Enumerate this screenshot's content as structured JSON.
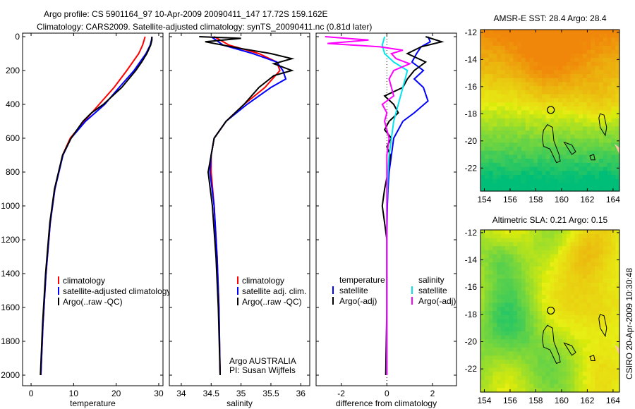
{
  "title": {
    "line1": "Argo profile: CS 5901164_97 10-Apr-2009 20090411_147 17.72S 159.162E",
    "line2": "Climatology: CARS2009. Satellite-adjusted climatology: synTS_20090411.nc (0.81d later)"
  },
  "side_label": "CSIRO 20-Apr-2009 10:30:48",
  "colors": {
    "red": "#ff0000",
    "blue": "#0000ff",
    "black": "#000000",
    "cyan": "#00e5ee",
    "magenta": "#ff00ff"
  },
  "chart_data": [
    {
      "type": "line",
      "id": "temperature",
      "xlabel": "temperature",
      "ylabel": "",
      "xlim": [
        -2,
        31
      ],
      "ylim": [
        2000,
        0
      ],
      "xticks": [
        0,
        10,
        20,
        30
      ],
      "yticks": [
        0,
        200,
        400,
        600,
        800,
        1000,
        1200,
        1400,
        1600,
        1800,
        2000
      ],
      "legend": [
        "climatology",
        "satellite-adjusted climatology",
        "Argo(..raw -QC)"
      ],
      "legend_placement": "lower-center",
      "series": [
        {
          "name": "climatology",
          "color": "red",
          "depth": [
            0,
            50,
            100,
            200,
            300,
            400,
            500,
            600,
            700,
            900,
            1100,
            1400,
            1700,
            2000
          ],
          "values": [
            26.8,
            26.2,
            25.3,
            22.5,
            19.5,
            16,
            12.5,
            9.2,
            7.4,
            5.6,
            4.5,
            3.5,
            2.8,
            2.3
          ]
        },
        {
          "name": "satellite-adjusted climatology",
          "color": "blue",
          "depth": [
            0,
            20,
            50,
            100,
            200,
            300,
            400,
            500,
            600,
            700,
            900,
            1100,
            1400,
            1700,
            2000
          ],
          "values": [
            28.4,
            28.3,
            28.0,
            27.0,
            24.2,
            20.7,
            17.3,
            12.8,
            9.4,
            7.5,
            5.6,
            4.5,
            3.5,
            2.8,
            2.3
          ]
        },
        {
          "name": "Argo(..raw -QC)",
          "color": "black",
          "depth": [
            0,
            20,
            50,
            100,
            150,
            200,
            300,
            400,
            450,
            500,
            600,
            700,
            900,
            1100,
            1400,
            1700,
            2000
          ],
          "values": [
            28.4,
            28.4,
            28.1,
            27.2,
            26,
            24.6,
            21.3,
            17.0,
            14.2,
            12.2,
            9.4,
            7.4,
            5.5,
            4.4,
            3.4,
            2.7,
            2.2
          ]
        }
      ]
    },
    {
      "type": "line",
      "id": "salinity",
      "xlabel": "salinity",
      "xlim": [
        33.8,
        36.15
      ],
      "ylim": [
        2000,
        0
      ],
      "xticks": [
        34,
        34.5,
        35,
        35.5,
        36
      ],
      "legend": [
        "climatology",
        "satellite adj. clim.",
        "Argo(..raw -QC)"
      ],
      "annotation": [
        "Argo AUSTRALIA",
        "PI: Susan Wijffels"
      ],
      "series": [
        {
          "name": "climatology",
          "color": "red",
          "depth": [
            0,
            50,
            100,
            150,
            200,
            300,
            400,
            500,
            600,
            700,
            800,
            1000,
            1300,
            1600,
            2000
          ],
          "values": [
            34.55,
            34.8,
            35.3,
            35.6,
            35.65,
            35.4,
            35.05,
            34.75,
            34.55,
            34.5,
            34.5,
            34.55,
            34.6,
            34.63,
            34.65
          ]
        },
        {
          "name": "satellite adj. clim.",
          "color": "blue",
          "depth": [
            0,
            50,
            100,
            150,
            200,
            250,
            300,
            400,
            500,
            600,
            700,
            800,
            1000,
            1300,
            1600,
            2000
          ],
          "values": [
            34.5,
            34.7,
            35.2,
            35.6,
            35.7,
            35.75,
            35.5,
            35.1,
            34.75,
            34.55,
            34.5,
            34.48,
            34.55,
            34.6,
            34.63,
            34.65
          ]
        },
        {
          "name": "Argo(..raw -QC)",
          "color": "black",
          "depth": [
            0,
            10,
            30,
            50,
            70,
            100,
            130,
            160,
            200,
            230,
            300,
            400,
            500,
            600,
            700,
            800,
            1000,
            1300,
            1600,
            2000
          ],
          "values": [
            34.3,
            35.0,
            34.4,
            34.7,
            35.0,
            35.5,
            35.85,
            35.55,
            35.85,
            35.55,
            35.3,
            35.05,
            34.75,
            34.55,
            34.5,
            34.45,
            34.52,
            34.58,
            34.62,
            34.65
          ]
        }
      ]
    },
    {
      "type": "line",
      "id": "difference",
      "xlabel": "difference from climatology",
      "xlim": [
        -3.1,
        3.05
      ],
      "ylim": [
        2000,
        0
      ],
      "xticks": [
        -2,
        0,
        2
      ],
      "legend_groups": [
        {
          "title": "temperature",
          "items": [
            "satellite",
            "Argo(-adj)"
          ]
        },
        {
          "title": "salinity",
          "items": [
            "satellite",
            "Argo(-adj)"
          ]
        }
      ],
      "series": [
        {
          "name": "temperature satellite",
          "color": "blue",
          "depth": [
            0,
            30,
            60,
            100,
            150,
            200,
            250,
            300,
            380,
            450,
            500,
            550,
            600,
            700,
            800,
            900,
            1000,
            1200,
            1600,
            2000
          ],
          "values": [
            1.8,
            1.9,
            1.5,
            1.3,
            1.1,
            1.6,
            1.2,
            1.6,
            1.8,
            1.2,
            0.7,
            0.5,
            0.3,
            0.2,
            0.1,
            0.05,
            0.02,
            0.0,
            0.0,
            0.0
          ]
        },
        {
          "name": "temperature Argo(-adj)",
          "color": "black",
          "depth": [
            0,
            30,
            60,
            100,
            150,
            200,
            250,
            300,
            350,
            400,
            450,
            500,
            550,
            600,
            650,
            700,
            800,
            900,
            1000,
            1100,
            1200,
            1600,
            2000
          ],
          "values": [
            1.7,
            2.4,
            1.5,
            0.9,
            1.7,
            1.2,
            0.9,
            0.7,
            -0.1,
            0.3,
            0.5,
            0.1,
            -0.1,
            0.2,
            0.0,
            0.15,
            0.05,
            -0.1,
            -0.2,
            -0.1,
            0.0,
            0.0,
            -0.05
          ]
        },
        {
          "name": "salinity satellite",
          "color": "cyan",
          "depth": [
            0,
            50,
            100,
            150,
            200,
            300,
            400,
            500,
            600,
            700,
            800,
            1000,
            1200,
            1600,
            2000
          ],
          "values": [
            -0.1,
            -0.2,
            -0.1,
            0.3,
            0.9,
            0.7,
            0.5,
            0.3,
            0.2,
            0.1,
            0.05,
            0.0,
            0.0,
            0.0,
            0.0
          ]
        },
        {
          "name": "salinity Argo(-adj)",
          "color": "magenta",
          "depth": [
            0,
            20,
            40,
            60,
            80,
            100,
            130,
            160,
            200,
            250,
            300,
            350,
            400,
            450,
            500,
            550,
            600,
            700,
            800,
            1000,
            1200,
            1600,
            2000
          ],
          "values": [
            -2.7,
            -0.8,
            -2.6,
            -0.3,
            0.7,
            0.2,
            0.4,
            1.0,
            0.3,
            0.1,
            0.2,
            0.3,
            -0.2,
            0.0,
            -0.1,
            0.0,
            0.1,
            0.0,
            0.0,
            0.0,
            0.0,
            0.0,
            0.0
          ]
        }
      ]
    },
    {
      "type": "heatmap",
      "id": "sst-map",
      "title": "AMSR-E SST: 28.4 Argo: 28.4",
      "xticks": [
        154,
        156,
        158,
        160,
        162,
        164
      ],
      "yticks": [
        -12,
        -14,
        -16,
        -18,
        -20,
        -22
      ],
      "xlim": [
        153.7,
        164.5
      ],
      "ylim": [
        -23.7,
        -11.8
      ],
      "marker": {
        "lon": 159.162,
        "lat": -17.72
      }
    },
    {
      "type": "heatmap",
      "id": "sla-map",
      "title": "Altimetric SLA: 0.21 Argo: 0.15",
      "xticks": [
        154,
        156,
        158,
        160,
        162,
        164
      ],
      "yticks": [
        -12,
        -14,
        -16,
        -18,
        -20,
        -22
      ],
      "xlim": [
        153.7,
        164.5
      ],
      "ylim": [
        -23.7,
        -11.8
      ],
      "marker": {
        "lon": 159.162,
        "lat": -17.72
      }
    }
  ]
}
